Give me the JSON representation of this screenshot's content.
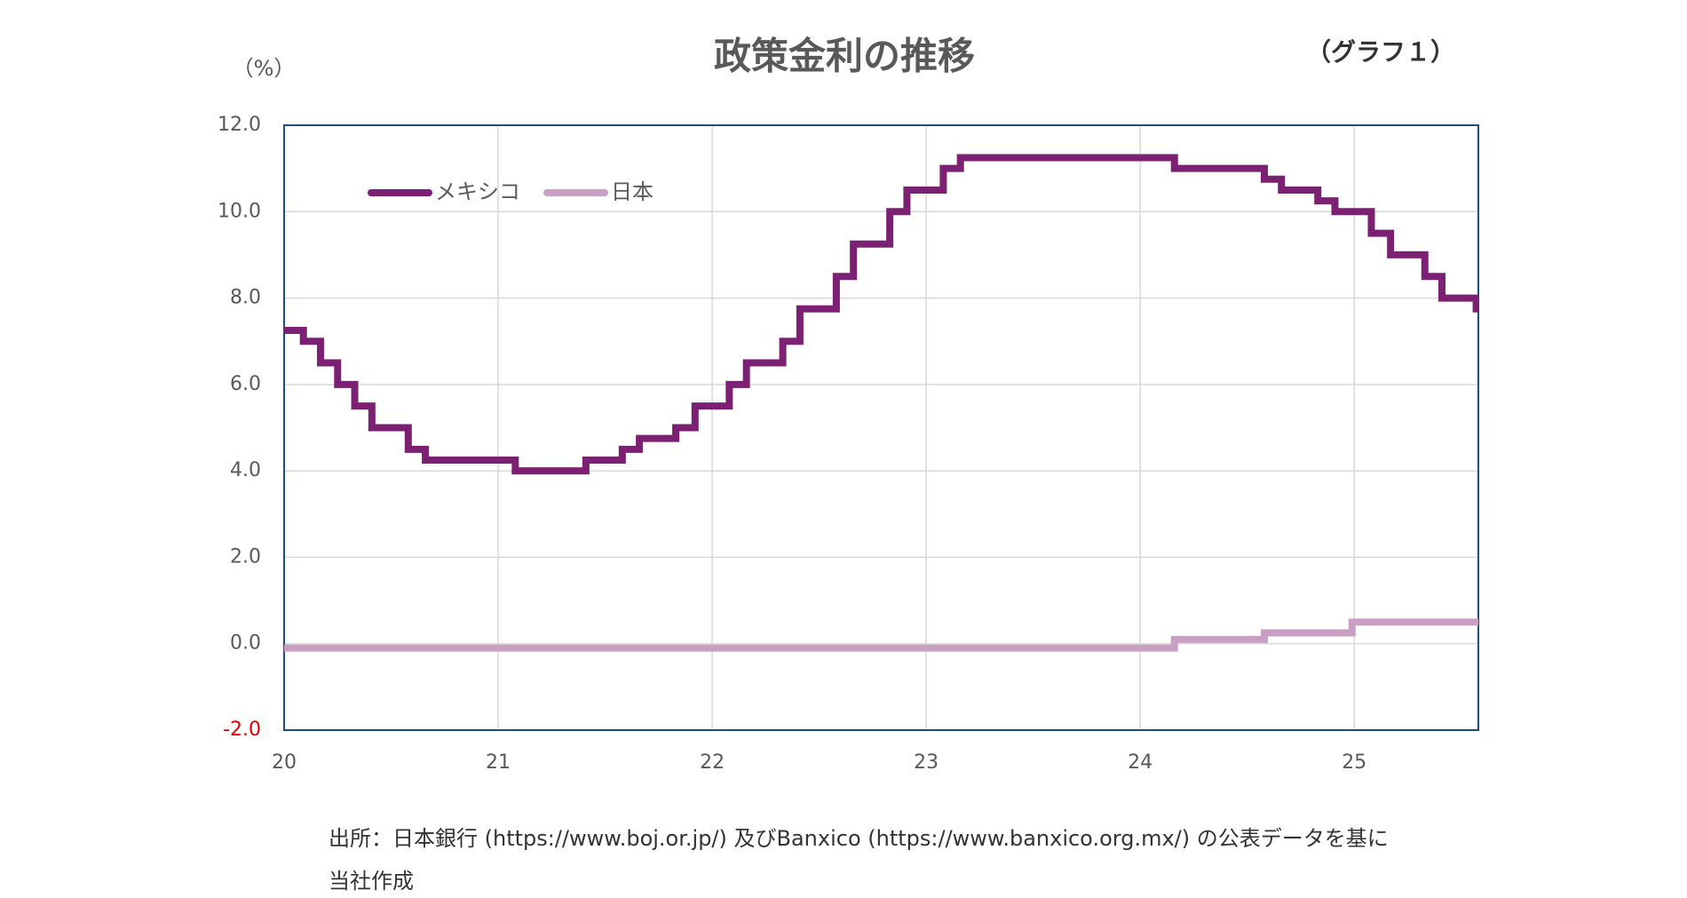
{
  "chart_data": {
    "type": "step-line",
    "title": "政策金利の推移",
    "tag": "（グラフ１）",
    "y_label": "（%）",
    "notes": [
      "出所：日本銀行 (https://www.boj.or.jp/) 及びBanxico (https://www.banxico.org.mx/) の公表データを基に",
      "当社作成"
    ],
    "xlim": [
      20,
      25.58
    ],
    "xticks": [
      20,
      21,
      22,
      23,
      24,
      25
    ],
    "ylim": [
      -2,
      12
    ],
    "yticks": [
      {
        "value": -2,
        "label": "-2.0"
      },
      {
        "value": 0,
        "label": "0.0"
      },
      {
        "value": 2,
        "label": "2.0"
      },
      {
        "value": 4,
        "label": "4.0"
      },
      {
        "value": 6,
        "label": "6.0"
      },
      {
        "value": 8,
        "label": "8.0"
      },
      {
        "value": 10,
        "label": "10.0"
      },
      {
        "value": 12,
        "label": "12.0"
      }
    ],
    "grid": true,
    "legend": "upper-left",
    "series": [
      {
        "name": "メキシコ",
        "color": "#7b2072",
        "x": [
          20,
          20.09,
          20.17,
          20.25,
          20.33,
          20.41,
          20.58,
          20.66,
          21.08,
          21.41,
          21.58,
          21.66,
          21.83,
          21.92,
          22.08,
          22.16,
          22.33,
          22.41,
          22.58,
          22.66,
          22.83,
          22.91,
          23.08,
          23.16,
          24.16,
          24.58,
          24.66,
          24.83,
          24.91,
          25.08,
          25.17,
          25.33,
          25.41,
          25.57
        ],
        "values": [
          7.25,
          7.0,
          6.5,
          6.0,
          5.5,
          5.0,
          4.5,
          4.25,
          4.0,
          4.25,
          4.5,
          4.75,
          5.0,
          5.5,
          6.0,
          6.5,
          7.0,
          7.75,
          8.5,
          9.25,
          10.0,
          10.5,
          11.0,
          11.25,
          11.0,
          10.75,
          10.5,
          10.25,
          10.0,
          9.5,
          9.0,
          8.5,
          8.0,
          7.75
        ]
      },
      {
        "name": "日本",
        "color": "#c9a0c4",
        "x": [
          20,
          24.16,
          24.58,
          24.99
        ],
        "values": [
          -0.1,
          0.1,
          0.25,
          0.5
        ]
      }
    ]
  }
}
